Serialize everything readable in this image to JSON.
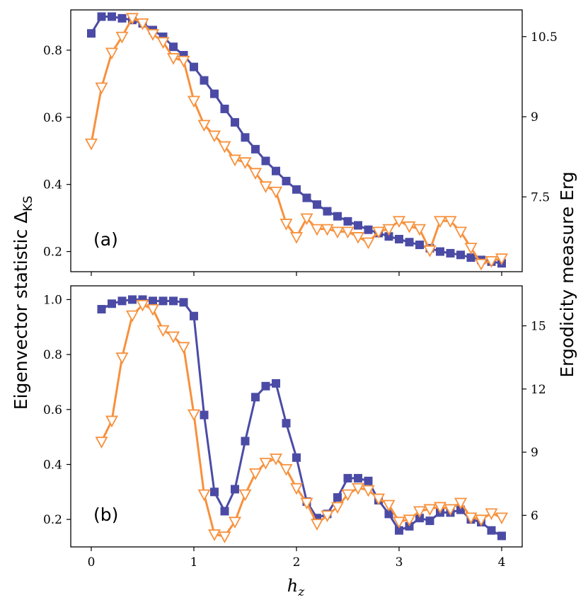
{
  "figure": {
    "ylabel_left": "Eigenvector statistic Δ",
    "ylabel_left_sub": "KS",
    "ylabel_right": "Ergodicity measure Erg",
    "xlabel": "h",
    "xlabel_sub": "z",
    "colors": {
      "kolmogorov": "#4b4ba6",
      "ergodicity": "#f7913d"
    }
  },
  "chart_data": [
    {
      "panel": "(a)",
      "type": "line",
      "xlim": [
        -0.2,
        4.2
      ],
      "ylim_left": [
        0.14,
        0.92
      ],
      "ylim_right": [
        6.1,
        11.0
      ],
      "xticks": [
        0,
        1,
        2,
        3,
        4
      ],
      "yticks_left": [
        0.2,
        0.4,
        0.6,
        0.8
      ],
      "yticks_right": [
        7.5,
        9.0,
        10.5
      ],
      "series": [
        {
          "axis": "left",
          "marker": "square",
          "x": [
            0.0,
            0.1,
            0.2,
            0.3,
            0.4,
            0.5,
            0.6,
            0.7,
            0.8,
            0.9,
            1.0,
            1.1,
            1.2,
            1.3,
            1.4,
            1.5,
            1.6,
            1.7,
            1.8,
            1.9,
            2.0,
            2.1,
            2.2,
            2.3,
            2.4,
            2.5,
            2.6,
            2.7,
            2.8,
            2.9,
            3.0,
            3.1,
            3.2,
            3.3,
            3.4,
            3.5,
            3.6,
            3.7,
            3.8,
            3.9,
            4.0
          ],
          "values": [
            0.85,
            0.9,
            0.9,
            0.895,
            0.89,
            0.88,
            0.86,
            0.84,
            0.81,
            0.785,
            0.75,
            0.71,
            0.67,
            0.625,
            0.585,
            0.54,
            0.505,
            0.47,
            0.44,
            0.41,
            0.385,
            0.36,
            0.34,
            0.32,
            0.305,
            0.29,
            0.278,
            0.265,
            0.255,
            0.245,
            0.237,
            0.228,
            0.22,
            0.21,
            0.2,
            0.195,
            0.19,
            0.182,
            0.175,
            0.17,
            0.165
          ]
        },
        {
          "axis": "right",
          "marker": "triangle-down",
          "x": [
            0.0,
            0.1,
            0.2,
            0.3,
            0.4,
            0.5,
            0.6,
            0.7,
            0.8,
            0.9,
            1.0,
            1.1,
            1.2,
            1.3,
            1.4,
            1.5,
            1.6,
            1.7,
            1.8,
            1.9,
            2.0,
            2.1,
            2.2,
            2.3,
            2.4,
            2.5,
            2.6,
            2.7,
            2.8,
            2.9,
            3.0,
            3.1,
            3.2,
            3.3,
            3.4,
            3.5,
            3.6,
            3.7,
            3.8,
            3.9,
            4.0
          ],
          "values": [
            8.5,
            9.55,
            10.2,
            10.5,
            10.85,
            10.75,
            10.55,
            10.4,
            10.1,
            10.05,
            9.3,
            8.85,
            8.65,
            8.45,
            8.2,
            8.15,
            7.95,
            7.7,
            7.6,
            7.0,
            6.75,
            7.1,
            6.9,
            6.9,
            6.85,
            6.85,
            6.75,
            6.65,
            6.85,
            6.9,
            7.05,
            6.95,
            6.9,
            6.5,
            7.05,
            7.05,
            6.85,
            6.55,
            6.25,
            6.3,
            6.35
          ]
        }
      ]
    },
    {
      "panel": "(b)",
      "type": "line",
      "xlim": [
        -0.2,
        4.2
      ],
      "ylim_left": [
        0.1,
        1.05
      ],
      "ylim_right": [
        4.5,
        16.9
      ],
      "xticks": [
        0,
        1,
        2,
        3,
        4
      ],
      "xticklabels": [
        "0",
        "1",
        "2",
        "3",
        "4"
      ],
      "yticks_left": [
        0.2,
        0.4,
        0.6,
        0.8,
        1.0
      ],
      "yticks_right": [
        6,
        9,
        12,
        15
      ],
      "series": [
        {
          "axis": "left",
          "marker": "square",
          "x": [
            0.1,
            0.2,
            0.3,
            0.4,
            0.5,
            0.6,
            0.7,
            0.8,
            0.9,
            1.0,
            1.1,
            1.2,
            1.3,
            1.4,
            1.5,
            1.6,
            1.7,
            1.8,
            1.9,
            2.0,
            2.1,
            2.2,
            2.3,
            2.4,
            2.5,
            2.6,
            2.7,
            2.8,
            2.9,
            3.0,
            3.1,
            3.2,
            3.3,
            3.4,
            3.5,
            3.6,
            3.7,
            3.8,
            3.9,
            4.0
          ],
          "values": [
            0.965,
            0.985,
            0.995,
            1.0,
            1.0,
            0.995,
            0.995,
            0.995,
            0.99,
            0.94,
            0.58,
            0.3,
            0.23,
            0.31,
            0.485,
            0.645,
            0.685,
            0.695,
            0.55,
            0.425,
            0.265,
            0.205,
            0.22,
            0.28,
            0.35,
            0.35,
            0.34,
            0.27,
            0.22,
            0.16,
            0.175,
            0.205,
            0.195,
            0.225,
            0.225,
            0.235,
            0.2,
            0.19,
            0.16,
            0.14
          ]
        },
        {
          "axis": "right",
          "marker": "triangle-down",
          "x": [
            0.1,
            0.2,
            0.3,
            0.4,
            0.5,
            0.6,
            0.7,
            0.8,
            0.9,
            1.0,
            1.1,
            1.2,
            1.3,
            1.4,
            1.5,
            1.6,
            1.7,
            1.8,
            1.9,
            2.0,
            2.1,
            2.2,
            2.3,
            2.4,
            2.5,
            2.6,
            2.7,
            2.8,
            2.9,
            3.0,
            3.1,
            3.2,
            3.3,
            3.4,
            3.5,
            3.6,
            3.7,
            3.8,
            3.9,
            4.0
          ],
          "values": [
            9.5,
            10.5,
            13.5,
            15.5,
            16.0,
            15.8,
            14.8,
            14.5,
            14.0,
            10.8,
            7.0,
            5.1,
            5.0,
            5.7,
            7.0,
            8.0,
            8.5,
            8.7,
            8.2,
            7.3,
            6.6,
            5.6,
            6.0,
            6.4,
            7.0,
            7.3,
            7.2,
            6.8,
            6.5,
            5.7,
            5.8,
            6.2,
            6.3,
            6.4,
            6.3,
            6.6,
            5.9,
            5.8,
            6.1,
            5.9
          ]
        }
      ]
    }
  ]
}
